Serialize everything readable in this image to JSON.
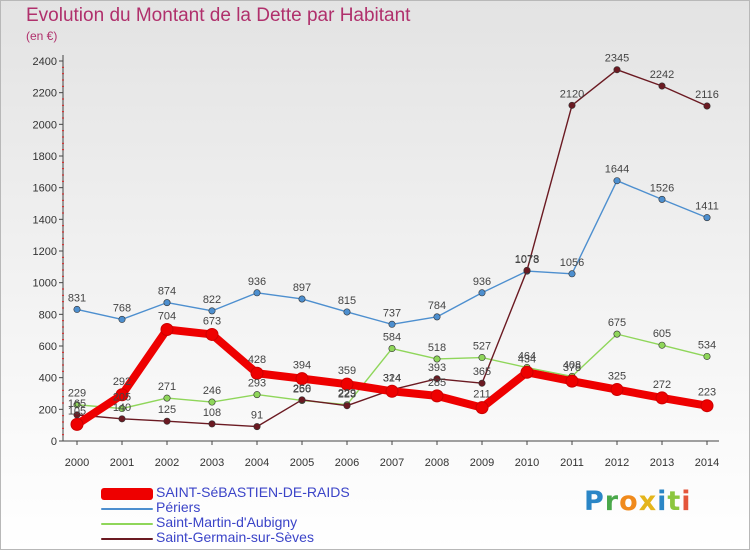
{
  "title": "Evolution du Montant de la Dette par Habitant",
  "subtitle": "(en €)",
  "logo": "Proxiti",
  "chart_data": {
    "type": "line",
    "title": "Evolution du Montant de la Dette par Habitant",
    "subtitle": "(en €)",
    "x": [
      2000,
      2001,
      2002,
      2003,
      2004,
      2005,
      2006,
      2007,
      2008,
      2009,
      2010,
      2011,
      2012,
      2013,
      2014
    ],
    "ylim": [
      0,
      2400
    ],
    "yticks": [
      0,
      200,
      400,
      600,
      800,
      1000,
      1200,
      1400,
      1600,
      1800,
      2000,
      2200,
      2400
    ],
    "grid": false,
    "legend": "bottom-left",
    "series": [
      {
        "name": "SAINT-SéBASTIEN-DE-RAIDS",
        "color": "#ee0000",
        "values": [
          105,
          292,
          704,
          673,
          428,
          394,
          359,
          314,
          285,
          211,
          434,
          378,
          325,
          272,
          223
        ]
      },
      {
        "name": "Périers",
        "color": "#4d8fcf",
        "values": [
          831,
          768,
          874,
          822,
          936,
          897,
          815,
          737,
          784,
          936,
          1073,
          1056,
          1644,
          1526,
          1411
        ]
      },
      {
        "name": "Saint-Martin-d'Aubigny",
        "color": "#8fd65a",
        "values": [
          229,
          205,
          271,
          246,
          293,
          256,
          229,
          584,
          518,
          527,
          464,
          408,
          675,
          605,
          534
        ]
      },
      {
        "name": "Saint-Germain-sur-Sèves",
        "color": "#6b1a22",
        "values": [
          165,
          140,
          125,
          108,
          91,
          260,
          223,
          324,
          393,
          365,
          1078,
          2120,
          2345,
          2242,
          2116
        ]
      }
    ]
  }
}
